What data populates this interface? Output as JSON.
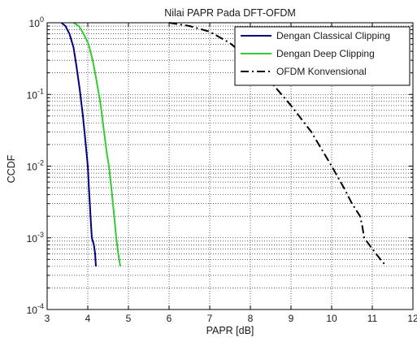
{
  "chart_data": {
    "type": "line",
    "title": "Nilai PAPR Pada DFT-OFDM",
    "xlabel": "PAPR [dB]",
    "ylabel": "CCDF",
    "xlim": [
      3,
      12
    ],
    "ylim": [
      0.0001,
      1
    ],
    "yscale": "log",
    "grid": true,
    "legend_position": "top-right",
    "x_ticks": [
      "3",
      "4",
      "5",
      "6",
      "7",
      "8",
      "9",
      "10",
      "11",
      "12"
    ],
    "y_ticks": [
      {
        "base": "10",
        "exp": "0"
      },
      {
        "base": "10",
        "exp": "-1"
      },
      {
        "base": "10",
        "exp": "-2"
      },
      {
        "base": "10",
        "exp": "-3"
      },
      {
        "base": "10",
        "exp": "-4"
      }
    ],
    "series": [
      {
        "name": "Dengan Classical Clipping",
        "color": "#000080",
        "style": "solid",
        "points": [
          [
            3.35,
            1
          ],
          [
            3.45,
            0.9
          ],
          [
            3.55,
            0.7
          ],
          [
            3.65,
            0.45
          ],
          [
            3.72,
            0.25
          ],
          [
            3.8,
            0.12
          ],
          [
            3.88,
            0.05
          ],
          [
            3.95,
            0.02
          ],
          [
            4.0,
            0.01
          ],
          [
            4.02,
            0.006
          ],
          [
            4.05,
            0.003
          ],
          [
            4.08,
            0.0015
          ],
          [
            4.1,
            0.001
          ],
          [
            4.15,
            0.0008
          ],
          [
            4.18,
            0.0006
          ],
          [
            4.2,
            0.0004
          ]
        ]
      },
      {
        "name": "Dengan Deep Clipping",
        "color": "#33cc33",
        "style": "solid",
        "points": [
          [
            3.65,
            1
          ],
          [
            3.78,
            0.9
          ],
          [
            3.9,
            0.7
          ],
          [
            4.02,
            0.5
          ],
          [
            4.12,
            0.3
          ],
          [
            4.22,
            0.15
          ],
          [
            4.32,
            0.07
          ],
          [
            4.4,
            0.03
          ],
          [
            4.47,
            0.015
          ],
          [
            4.52,
            0.01
          ],
          [
            4.58,
            0.005
          ],
          [
            4.65,
            0.002
          ],
          [
            4.7,
            0.001
          ],
          [
            4.75,
            0.0006
          ],
          [
            4.8,
            0.0004
          ]
        ]
      },
      {
        "name": "OFDM Konvensional",
        "color": "#000000",
        "style": "dashdot",
        "points": [
          [
            6.0,
            1
          ],
          [
            6.5,
            0.9
          ],
          [
            7.0,
            0.75
          ],
          [
            7.5,
            0.52
          ],
          [
            8.0,
            0.3
          ],
          [
            8.5,
            0.15
          ],
          [
            9.0,
            0.07
          ],
          [
            9.5,
            0.03
          ],
          [
            10.0,
            0.01
          ],
          [
            10.3,
            0.005
          ],
          [
            10.5,
            0.003
          ],
          [
            10.7,
            0.002
          ],
          [
            10.75,
            0.0015
          ],
          [
            10.8,
            0.001
          ],
          [
            11.0,
            0.0007
          ],
          [
            11.2,
            0.0005
          ],
          [
            11.35,
            0.0004
          ]
        ]
      }
    ]
  }
}
